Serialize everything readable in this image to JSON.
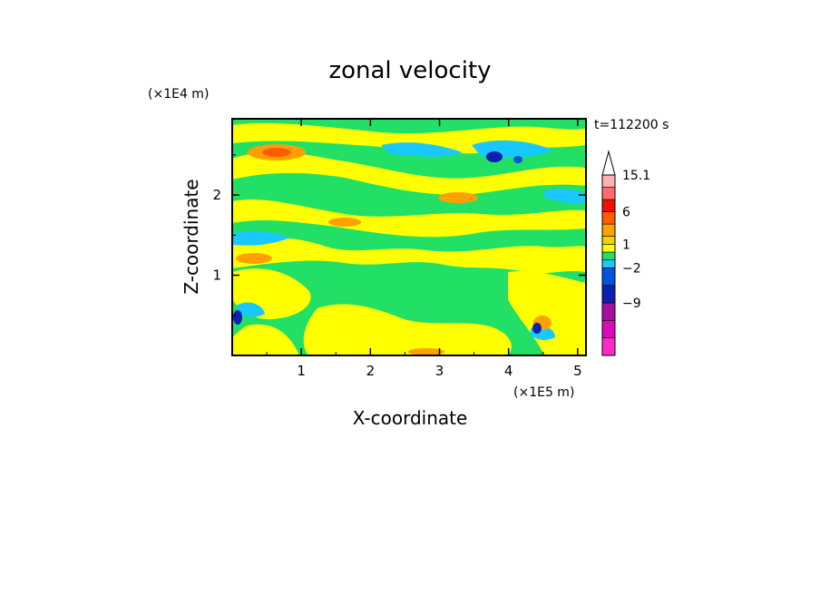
{
  "chart_data": {
    "type": "heatmap",
    "title": "zonal velocity",
    "xlabel": "X-coordinate",
    "ylabel": "Z-coordinate",
    "x_unit": "(×1E5 m)",
    "y_unit": "(×1E4 m)",
    "time_label": "t=112200 s",
    "xlim": [
      0,
      5.12
    ],
    "ylim": [
      0,
      2.95
    ],
    "x_ticks": [
      "1",
      "2",
      "3",
      "4",
      "5"
    ],
    "y_ticks": [
      "1",
      "2"
    ],
    "colorbar": {
      "levels": [
        {
          "value": -16,
          "color": "#ff29c8"
        },
        {
          "value": -12,
          "color": "#d70bb9"
        },
        {
          "value": -9,
          "color": "#a40f9e"
        },
        {
          "value": -6,
          "color": "#0b1fb0"
        },
        {
          "value": -2,
          "color": "#0054e0"
        },
        {
          "value": -1,
          "color": "#18c8ff"
        },
        {
          "value": 0,
          "color": "#22e066"
        },
        {
          "value": 1,
          "color": "#ffff00"
        },
        {
          "value": 2,
          "color": "#f2d300"
        },
        {
          "value": 4,
          "color": "#ffa000"
        },
        {
          "value": 6,
          "color": "#ff5c00"
        },
        {
          "value": 9,
          "color": "#ee1100"
        },
        {
          "value": 12,
          "color": "#ff6b6b"
        },
        {
          "value": 15.1,
          "color": "#ffb0b0"
        }
      ],
      "labels": [
        "15.1",
        "6",
        "1",
        "−2",
        "−9"
      ]
    }
  }
}
